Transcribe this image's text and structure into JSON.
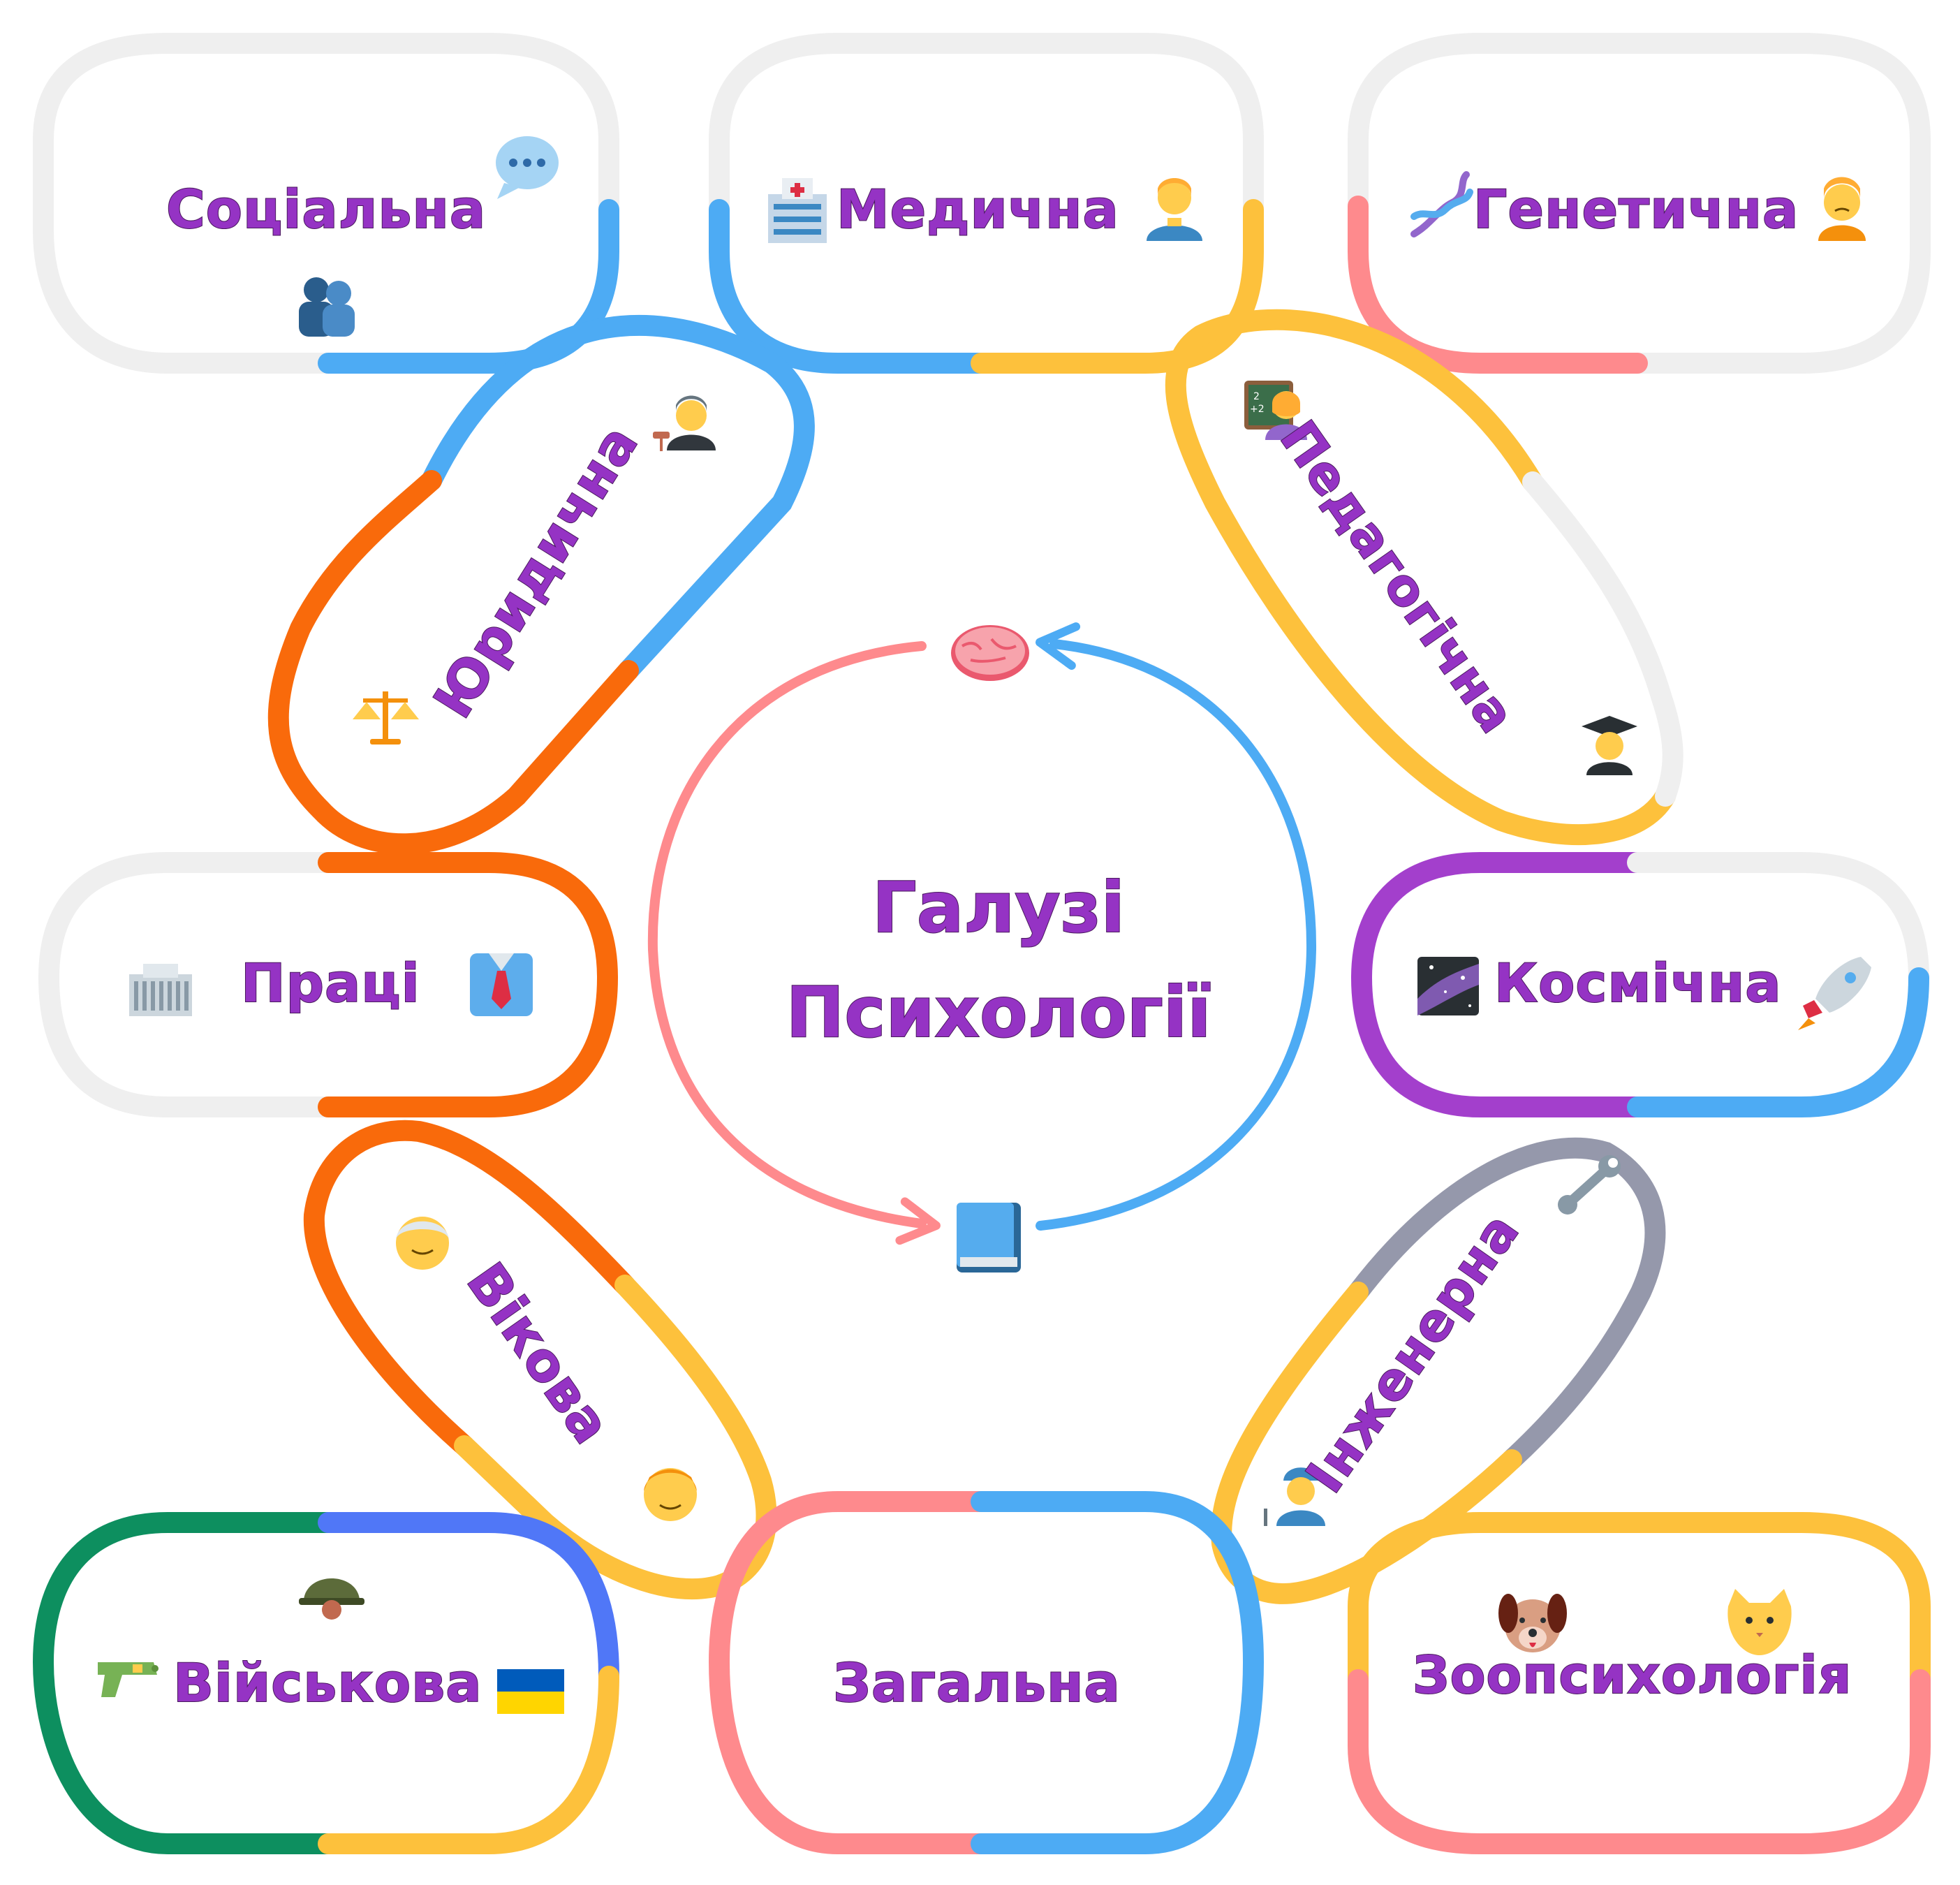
{
  "title_line1": "Галузі",
  "title_line2": "Психології",
  "nodes": {
    "social": "Соціальна",
    "medical": "Медична",
    "genetic": "Генетична",
    "legal": "Юридична",
    "pedagogical": "Педагогічна",
    "labor": "Праці",
    "space": "Космічна",
    "age": "Вікова",
    "engineering": "Інженерна",
    "military": "Військова",
    "general": "Загальна",
    "zoo": "Зоопсихологія"
  },
  "colors": {
    "text": "#9533c4",
    "gray": "#efefef",
    "blue": "#4dabf4",
    "yellow": "#fdc13c",
    "pink": "#fe8a8d",
    "orange": "#f96a0b",
    "purple": "#a33fcc",
    "slate": "#9598ab",
    "green": "#0d8f5f",
    "indigo": "#5077f7"
  },
  "icons": [
    "speech-bubble-icon",
    "people-hugging-icon",
    "hospital-icon",
    "health-worker-icon",
    "dna-icon",
    "person-frowning-icon",
    "judge-icon",
    "scales-icon",
    "teacher-icon",
    "graduate-icon",
    "office-building-icon",
    "shirt-tie-icon",
    "milky-way-icon",
    "rocket-icon",
    "older-man-icon",
    "boy-icon",
    "wrench-icon",
    "engineer-icon",
    "helmet-icon",
    "water-pistol-icon",
    "ukraine-flag-icon",
    "dog-face-icon",
    "cat-face-icon",
    "brain-icon",
    "book-icon"
  ]
}
